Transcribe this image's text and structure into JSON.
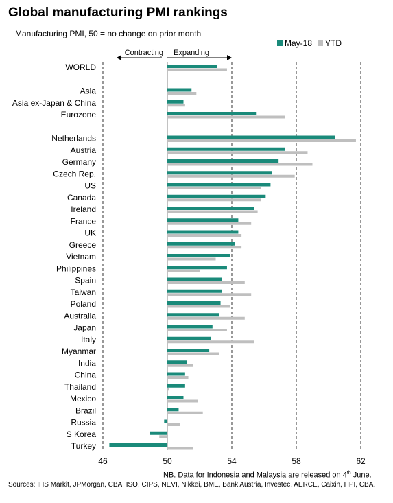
{
  "title": "Global manufacturing PMI rankings",
  "subtitle": "Manufacturing PMI, 50 = no change on prior month",
  "legend": {
    "may": "May-18",
    "ytd": "YTD"
  },
  "direction": {
    "left": "Contracting",
    "right": "Expanding"
  },
  "note": {
    "prefix": "NB. Data for Indonesia and Malaysia are released on 4",
    "sup": "th",
    "suffix": " June."
  },
  "sources": "Sources: IHS Markit, JPMorgan, CBA, ISO, CIPS, NEVI, Nikkei, BME, Bank Austria, Investec, AERCE, Caixin, HPI, CBA.",
  "colors": {
    "may": "#1a8a7a",
    "ytd": "#bfbfbf"
  },
  "chart_data": {
    "type": "bar",
    "orientation": "horizontal",
    "xlim": [
      46,
      62
    ],
    "xticks": [
      46,
      50,
      54,
      58,
      62
    ],
    "baseline": 50,
    "categories": [
      "WORLD",
      "",
      "Asia",
      "Asia ex-Japan & China",
      "Eurozone",
      "",
      "Netherlands",
      "Austria",
      "Germany",
      "Czech Rep.",
      "US",
      "Canada",
      "Ireland",
      "France",
      "UK",
      "Greece",
      "Vietnam",
      "Philippines",
      "Spain",
      "Taiwan",
      "Poland",
      "Australia",
      "Japan",
      "Italy",
      "Myanmar",
      "India",
      "China",
      "Thailand",
      "Mexico",
      "Brazil",
      "Russia",
      "S Korea",
      "Turkey"
    ],
    "series": [
      {
        "name": "May-18",
        "values": [
          53.1,
          null,
          51.5,
          51.0,
          55.5,
          null,
          60.4,
          57.3,
          56.9,
          56.5,
          56.4,
          56.1,
          55.4,
          54.4,
          54.4,
          54.2,
          53.9,
          53.7,
          53.4,
          53.4,
          53.3,
          53.2,
          52.8,
          52.7,
          52.6,
          51.2,
          51.1,
          51.1,
          51.0,
          50.7,
          49.8,
          48.9,
          46.4
        ]
      },
      {
        "name": "YTD",
        "values": [
          53.7,
          null,
          51.8,
          51.1,
          57.3,
          null,
          61.7,
          58.7,
          59.0,
          57.9,
          55.8,
          55.8,
          55.6,
          55.2,
          54.6,
          54.6,
          53.0,
          52.0,
          54.8,
          55.2,
          53.9,
          54.8,
          53.7,
          55.4,
          53.2,
          51.6,
          51.3,
          50.1,
          51.9,
          52.2,
          50.8,
          49.5,
          51.6
        ]
      }
    ]
  }
}
